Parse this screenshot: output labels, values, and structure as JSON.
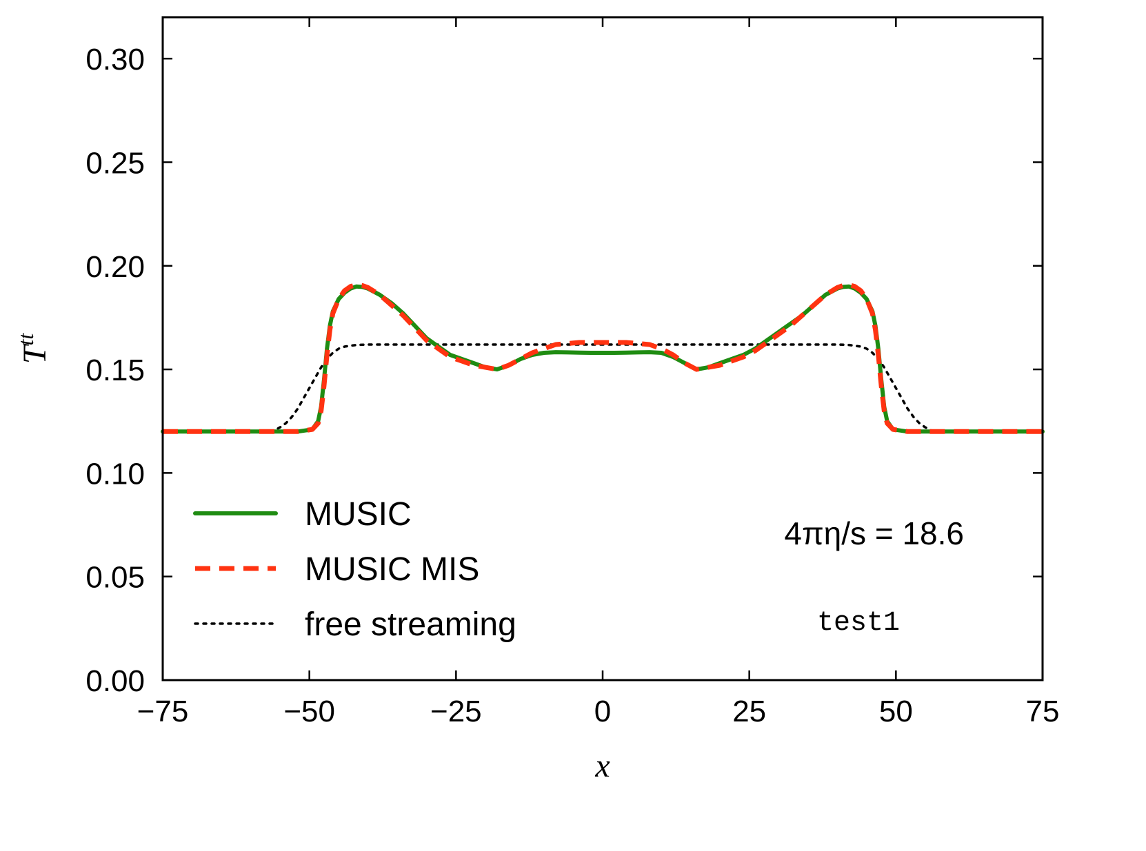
{
  "chart_data": {
    "type": "line",
    "title": "",
    "xlabel": "x",
    "ylabel_base": "T",
    "ylabel_sup": "tt",
    "xlim": [
      -75,
      75
    ],
    "ylim": [
      0.0,
      0.32
    ],
    "xticks": [
      -75,
      -50,
      -25,
      0,
      25,
      50,
      75
    ],
    "xtick_labels": [
      "−75",
      "−50",
      "−25",
      "0",
      "25",
      "50",
      "75"
    ],
    "yticks": [
      0.0,
      0.05,
      0.1,
      0.15,
      0.2,
      0.25,
      0.3
    ],
    "ytick_labels": [
      "0.00",
      "0.05",
      "0.10",
      "0.15",
      "0.20",
      "0.25",
      "0.30"
    ],
    "grid": false,
    "legend_position": "lower-left",
    "series": [
      {
        "name": "MUSIC",
        "color": "#1f8c12",
        "style": "solid",
        "x": [
          -75,
          -52,
          -49.5,
          -48.5,
          -48,
          -47.5,
          -47,
          -46.5,
          -46,
          -45,
          -44,
          -43,
          -42,
          -41,
          -40,
          -38,
          -36,
          -34,
          -32,
          -30,
          -28,
          -26,
          -24,
          -22,
          -20,
          -18,
          -16,
          -14,
          -12,
          -10,
          -8,
          -6,
          -4,
          -2,
          0,
          2,
          4,
          6,
          8,
          10,
          12,
          14,
          16,
          18,
          20,
          22,
          24,
          26,
          28,
          30,
          32,
          34,
          36,
          38,
          40,
          41,
          42,
          43,
          44,
          45,
          46,
          46.5,
          47,
          47.5,
          48,
          48.5,
          49.5,
          52,
          75
        ],
        "y": [
          0.12,
          0.12,
          0.121,
          0.125,
          0.132,
          0.145,
          0.16,
          0.171,
          0.178,
          0.184,
          0.187,
          0.189,
          0.19,
          0.1898,
          0.189,
          0.186,
          0.182,
          0.177,
          0.171,
          0.165,
          0.161,
          0.157,
          0.155,
          0.153,
          0.151,
          0.15,
          0.152,
          0.155,
          0.157,
          0.158,
          0.1583,
          0.1582,
          0.1581,
          0.158,
          0.158,
          0.158,
          0.1581,
          0.1582,
          0.1583,
          0.158,
          0.156,
          0.153,
          0.15,
          0.151,
          0.153,
          0.155,
          0.157,
          0.16,
          0.164,
          0.168,
          0.172,
          0.176,
          0.181,
          0.186,
          0.189,
          0.1898,
          0.19,
          0.189,
          0.187,
          0.184,
          0.178,
          0.171,
          0.16,
          0.145,
          0.132,
          0.125,
          0.121,
          0.12,
          0.12
        ]
      },
      {
        "name": "MUSIC MIS",
        "color": "#ff3311",
        "style": "dashed",
        "x": [
          -75,
          -52,
          -49.5,
          -48.5,
          -48,
          -47.5,
          -47,
          -46.5,
          -46,
          -45,
          -44,
          -43,
          -42,
          -41,
          -40,
          -38,
          -36,
          -34,
          -32,
          -30,
          -28,
          -26,
          -24,
          -22,
          -20,
          -18,
          -16,
          -14,
          -12,
          -10,
          -8,
          -6,
          -4,
          -2,
          0,
          2,
          4,
          6,
          8,
          10,
          12,
          14,
          16,
          18,
          20,
          22,
          24,
          26,
          28,
          30,
          32,
          34,
          36,
          38,
          40,
          41,
          42,
          43,
          44,
          45,
          46,
          46.5,
          47,
          47.5,
          48,
          48.5,
          49.5,
          52,
          75
        ],
        "y": [
          0.12,
          0.12,
          0.121,
          0.124,
          0.13,
          0.142,
          0.157,
          0.169,
          0.177,
          0.184,
          0.188,
          0.19,
          0.1908,
          0.1905,
          0.1895,
          0.186,
          0.181,
          0.176,
          0.17,
          0.164,
          0.16,
          0.156,
          0.154,
          0.152,
          0.151,
          0.15,
          0.152,
          0.155,
          0.158,
          0.16,
          0.162,
          0.1625,
          0.163,
          0.163,
          0.163,
          0.163,
          0.163,
          0.1625,
          0.162,
          0.16,
          0.157,
          0.153,
          0.15,
          0.151,
          0.152,
          0.154,
          0.156,
          0.159,
          0.163,
          0.167,
          0.171,
          0.176,
          0.181,
          0.186,
          0.1895,
          0.1905,
          0.1908,
          0.19,
          0.188,
          0.184,
          0.177,
          0.169,
          0.157,
          0.142,
          0.13,
          0.124,
          0.121,
          0.12,
          0.12
        ]
      },
      {
        "name": "free streaming",
        "color": "#000000",
        "style": "dotted",
        "x": [
          -75,
          -57,
          -56,
          -55,
          -54,
          -53,
          -52,
          -51,
          -50,
          -49,
          -48,
          -47,
          -46,
          -45,
          -44,
          -42,
          -40,
          -30,
          -20,
          -10,
          0,
          10,
          20,
          30,
          40,
          42,
          44,
          45,
          46,
          47,
          48,
          49,
          50,
          51,
          52,
          53,
          54,
          55,
          56,
          57,
          75
        ],
        "y": [
          0.12,
          0.12,
          0.1205,
          0.122,
          0.124,
          0.127,
          0.131,
          0.136,
          0.141,
          0.146,
          0.151,
          0.155,
          0.158,
          0.16,
          0.161,
          0.1618,
          0.162,
          0.162,
          0.162,
          0.162,
          0.162,
          0.162,
          0.162,
          0.162,
          0.162,
          0.1618,
          0.161,
          0.16,
          0.158,
          0.155,
          0.151,
          0.146,
          0.141,
          0.136,
          0.131,
          0.127,
          0.124,
          0.122,
          0.1205,
          0.12,
          0.12
        ]
      }
    ],
    "annotations": {
      "viscosity": "4πη/s = 18.6",
      "test": "test1"
    }
  }
}
